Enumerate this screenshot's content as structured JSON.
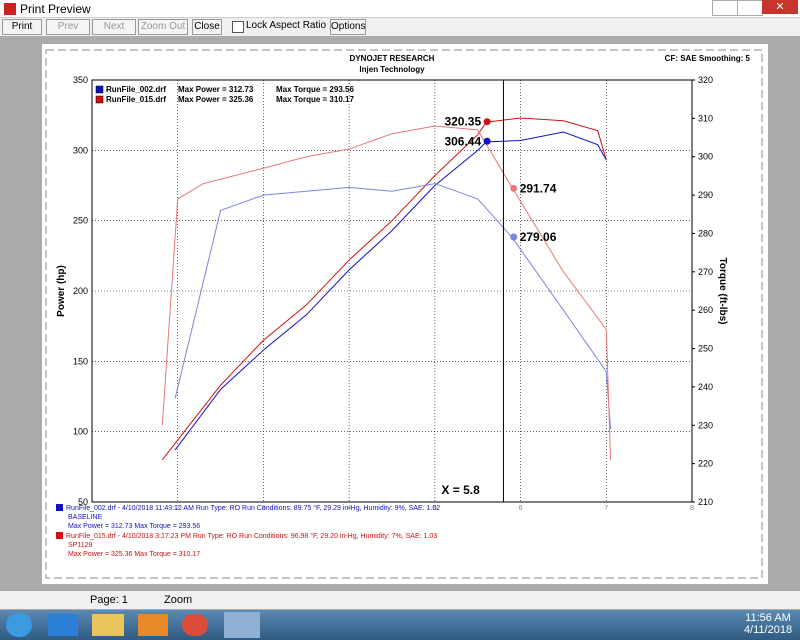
{
  "window": {
    "title": "Print Preview"
  },
  "toolbar": [
    "Print",
    "Prev",
    "Next",
    "Zoom Out",
    "Close",
    "Lock Aspect Ratio",
    "Options"
  ],
  "report": {
    "header": [
      "DYNOJET RESEARCH",
      "Injen Technology"
    ],
    "settings": "CF: SAE  Smoothing: 5",
    "footer": [
      {
        "color": "#1010c0",
        "lines": [
          "RunFile_002.drf - 4/10/2018 11:43:12 AM  Run Type: RO  Run Conditions: 89.75 °F, 29.29 in-Hg,  Humidity:  9%, SAE: 1.02",
          "BASELINE",
          "Max Power = 312.73  Max Torque = 293.56"
        ]
      },
      {
        "color": "#d01010",
        "lines": [
          "RunFile_015.drf - 4/10/2018 3:17:23 PM  Run Type: RO  Run Conditions: 96.98 °F, 29.20 in-Hg,  Humidity:  7%, SAE: 1.03",
          "SP1129",
          "Max Power = 325.36  Max Torque = 310.17"
        ]
      }
    ]
  },
  "chart_data": {
    "type": "line",
    "ylabel": "Power (hp)",
    "y2label": "Torque (ft-lbs)",
    "xlim": [
      1,
      8
    ],
    "xticks": [
      2,
      3,
      4,
      5,
      6,
      7,
      8
    ],
    "ylim": [
      50,
      350
    ],
    "yticks": [
      50,
      100,
      150,
      200,
      250,
      300,
      350
    ],
    "y2lim": [
      210,
      320
    ],
    "y2ticks": [
      210,
      220,
      230,
      240,
      250,
      260,
      270,
      280,
      290,
      300,
      310,
      320
    ],
    "grid": true,
    "legend": [
      {
        "color": "#1010c0",
        "file": "RunFile_002.drf",
        "power": "Max Power = 312.73",
        "torque": "Max Torque = 293.56"
      },
      {
        "color": "#d01010",
        "file": "RunFile_015.drf",
        "power": "Max Power = 325.36",
        "torque": "Max Torque = 310.17"
      }
    ],
    "series": [
      {
        "color": "#1010c0",
        "x": [
          1.97,
          2.5,
          3,
          3.5,
          4,
          4.5,
          5,
          5.5,
          5.6,
          6,
          6.5,
          6.9,
          7
        ],
        "values": [
          87,
          130,
          158,
          183,
          215,
          243,
          275,
          300,
          306,
          307,
          313,
          304,
          293
        ]
      },
      {
        "color": "#d01010",
        "x": [
          1.82,
          2,
          2.5,
          3,
          3.5,
          4,
          4.5,
          5,
          5.5,
          5.6,
          6,
          6.5,
          6.9,
          7
        ],
        "values": [
          80,
          94,
          133,
          165,
          190,
          222,
          250,
          282,
          311,
          320,
          323,
          321,
          314,
          293
        ]
      },
      {
        "color": "#7a86e0",
        "axis": "y2",
        "x": [
          1.97,
          2.5,
          3,
          3.5,
          4,
          4.5,
          5,
          5.5,
          5.9,
          6.5,
          7,
          7.05
        ],
        "values": [
          237,
          286,
          290,
          291,
          292,
          291,
          293,
          289,
          279,
          260,
          244,
          229
        ]
      },
      {
        "color": "#e87878",
        "axis": "y2",
        "x": [
          1.82,
          2,
          2.3,
          3,
          3.5,
          4,
          4.5,
          5,
          5.5,
          5.9,
          6.5,
          7,
          7.05
        ],
        "values": [
          230,
          289,
          293,
          297,
          300,
          302,
          306,
          308,
          307,
          292,
          270,
          255,
          221
        ]
      }
    ],
    "annotations": [
      {
        "label": "320.35",
        "x": 5.61,
        "y": 320.35,
        "color": "#d01010"
      },
      {
        "label": "306.44",
        "x": 5.61,
        "y": 306.44,
        "color": "#1010c0"
      },
      {
        "label": "291.74",
        "x": 5.92,
        "y": 291.74,
        "axis": "y2",
        "color": "#e87878"
      },
      {
        "label": "279.06",
        "x": 5.92,
        "y": 279.06,
        "axis": "y2",
        "color": "#7a86e0"
      }
    ],
    "cursor": {
      "label": "X = 5.8",
      "value": 5.8
    }
  },
  "status_bar": [
    "Page: 1",
    "Zoom"
  ],
  "taskbar": {
    "time": "11:56 AM",
    "date": "4/11/2018"
  }
}
